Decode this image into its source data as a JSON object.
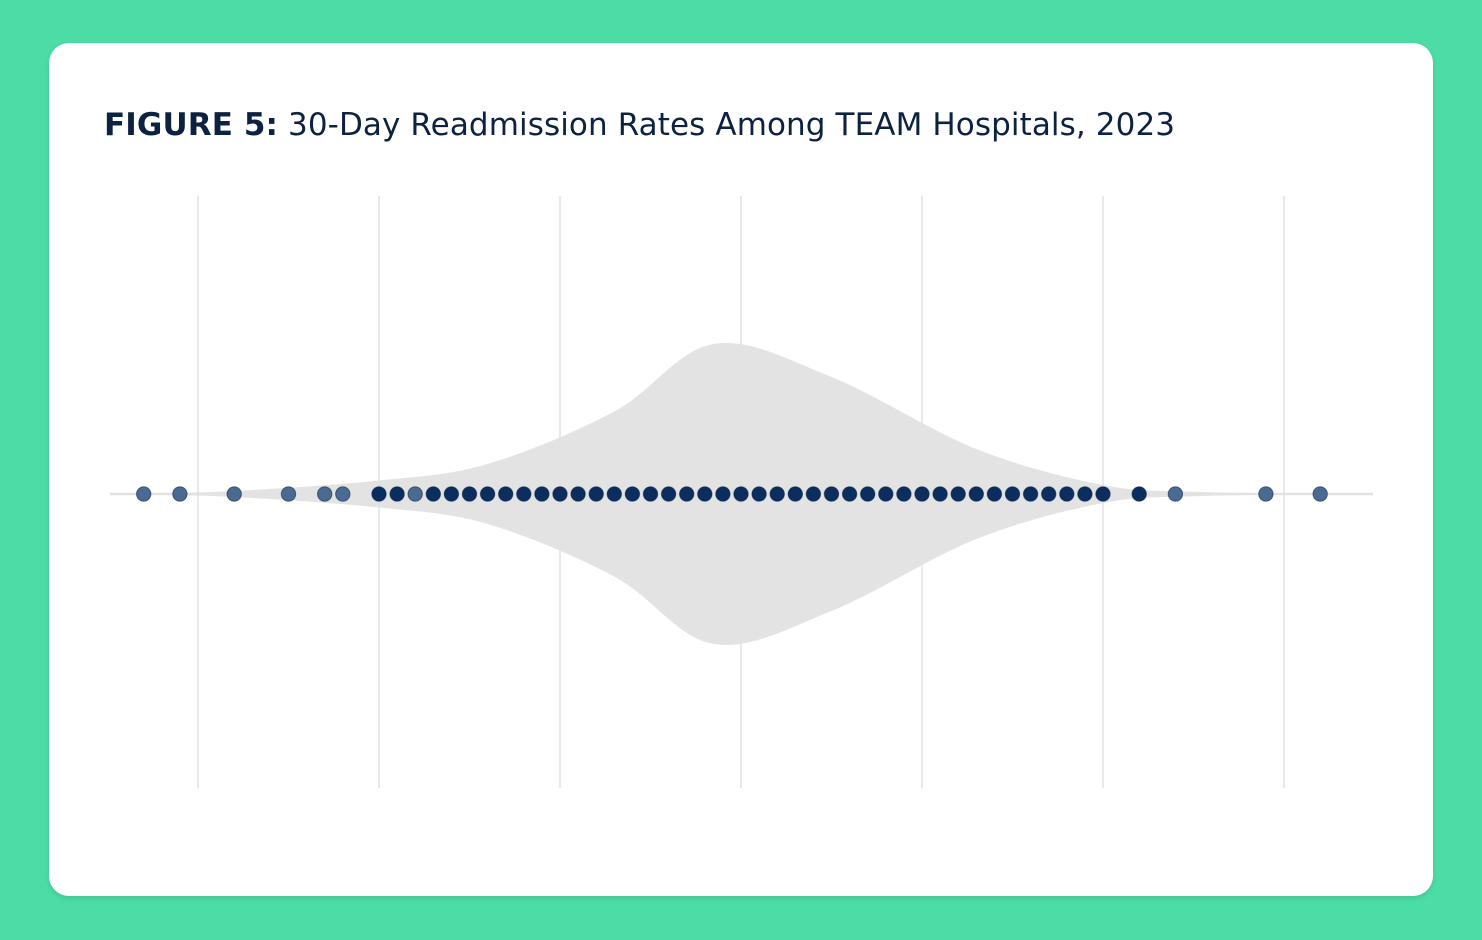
{
  "figure": {
    "label": "FIGURE 5:",
    "title": "30-Day Readmission Rates Among TEAM Hospitals, 2023"
  },
  "colors": {
    "page_background": "#4cdda6",
    "card_background": "#ffffff",
    "title_text": "#0d2240",
    "violin_fill": "#e1e1e1",
    "grid_line": "#e9e9e9",
    "point_core": "#0b2e5e",
    "point_outlier": "#4a6a92"
  },
  "chart_data": {
    "type": "scatter",
    "subtype": "violin with strip plot",
    "title": "30-Day Readmission Rates Among TEAM Hospitals, 2023",
    "xlabel": "",
    "ylabel": "",
    "x_tick_labels_shown": false,
    "grid": "vertical gridlines",
    "xlim": [
      -0.5,
      6.5
    ],
    "gridlines_x": [
      0,
      1,
      2,
      3,
      4,
      5,
      6
    ],
    "violin_density": [
      [
        -0.3,
        0.005
      ],
      [
        0.2,
        0.02
      ],
      [
        1.0,
        0.09
      ],
      [
        1.6,
        0.2
      ],
      [
        2.3,
        0.55
      ],
      [
        2.85,
        1.0
      ],
      [
        3.5,
        0.78
      ],
      [
        4.3,
        0.3
      ],
      [
        5.0,
        0.06
      ],
      [
        5.5,
        0.015
      ],
      [
        6.2,
        0.002
      ]
    ],
    "points": [
      {
        "x": -0.3,
        "outlier": true
      },
      {
        "x": -0.1,
        "outlier": true
      },
      {
        "x": 0.2,
        "outlier": true
      },
      {
        "x": 0.5,
        "outlier": true
      },
      {
        "x": 0.7,
        "outlier": true
      },
      {
        "x": 0.8,
        "outlier": true
      },
      {
        "x": 1.0,
        "outlier": false
      },
      {
        "x": 1.1,
        "outlier": false
      },
      {
        "x": 1.2,
        "outlier": true
      },
      {
        "x": 1.3,
        "outlier": false
      },
      {
        "x": 1.4,
        "outlier": false
      },
      {
        "x": 1.5,
        "outlier": false
      },
      {
        "x": 1.6,
        "outlier": false
      },
      {
        "x": 1.7,
        "outlier": false
      },
      {
        "x": 1.8,
        "outlier": false
      },
      {
        "x": 1.9,
        "outlier": false
      },
      {
        "x": 2.0,
        "outlier": false
      },
      {
        "x": 2.1,
        "outlier": false
      },
      {
        "x": 2.2,
        "outlier": false
      },
      {
        "x": 2.3,
        "outlier": false
      },
      {
        "x": 2.4,
        "outlier": false
      },
      {
        "x": 2.5,
        "outlier": false
      },
      {
        "x": 2.6,
        "outlier": false
      },
      {
        "x": 2.7,
        "outlier": false
      },
      {
        "x": 2.8,
        "outlier": false
      },
      {
        "x": 2.9,
        "outlier": false
      },
      {
        "x": 3.0,
        "outlier": false
      },
      {
        "x": 3.1,
        "outlier": false
      },
      {
        "x": 3.2,
        "outlier": false
      },
      {
        "x": 3.3,
        "outlier": false
      },
      {
        "x": 3.4,
        "outlier": false
      },
      {
        "x": 3.5,
        "outlier": false
      },
      {
        "x": 3.6,
        "outlier": false
      },
      {
        "x": 3.7,
        "outlier": false
      },
      {
        "x": 3.8,
        "outlier": false
      },
      {
        "x": 3.9,
        "outlier": false
      },
      {
        "x": 4.0,
        "outlier": false
      },
      {
        "x": 4.1,
        "outlier": false
      },
      {
        "x": 4.2,
        "outlier": false
      },
      {
        "x": 4.3,
        "outlier": false
      },
      {
        "x": 4.4,
        "outlier": false
      },
      {
        "x": 4.5,
        "outlier": false
      },
      {
        "x": 4.6,
        "outlier": false
      },
      {
        "x": 4.7,
        "outlier": false
      },
      {
        "x": 4.8,
        "outlier": false
      },
      {
        "x": 4.9,
        "outlier": false
      },
      {
        "x": 5.0,
        "outlier": false
      },
      {
        "x": 5.2,
        "outlier": false
      },
      {
        "x": 5.4,
        "outlier": true
      },
      {
        "x": 5.9,
        "outlier": true
      },
      {
        "x": 6.2,
        "outlier": true
      }
    ]
  }
}
